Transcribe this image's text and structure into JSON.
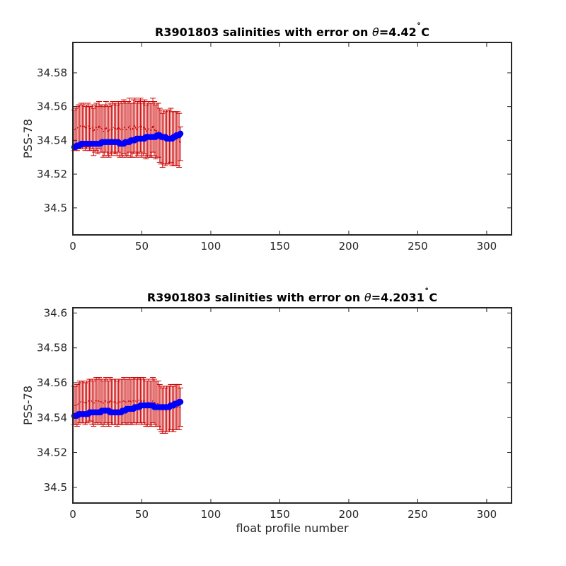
{
  "chart_data": [
    {
      "type": "scatter",
      "title": "R3901803 salinities with error on θ=4.42˚C",
      "title_prefix": "R3901803 salinities with error on ",
      "title_theta": "θ",
      "title_suffix": "=4.42",
      "title_deg": "˚",
      "title_unit": "C",
      "ylabel": "PSS-78",
      "xlabel": "",
      "xlim": [
        0,
        318
      ],
      "ylim": [
        34.484,
        34.598
      ],
      "xticks": [
        0,
        50,
        100,
        150,
        200,
        250,
        300
      ],
      "yticks": [
        34.5,
        34.52,
        34.54,
        34.56,
        34.58
      ],
      "ytick_labels": [
        "34.5",
        "34.52",
        "34.54",
        "34.56",
        "34.58"
      ],
      "x_start": 1,
      "x_step": 1,
      "series": [
        {
          "role": "mean salinity",
          "color": "#0000ff",
          "values": [
            34.536,
            34.536,
            34.537,
            34.537,
            34.537,
            34.538,
            34.538,
            34.538,
            34.538,
            34.538,
            34.538,
            34.538,
            34.538,
            34.538,
            34.538,
            34.538,
            34.538,
            34.538,
            34.538,
            34.538,
            34.539,
            34.539,
            34.539,
            34.539,
            34.539,
            34.539,
            34.539,
            34.539,
            34.539,
            34.539,
            34.539,
            34.539,
            34.539,
            34.538,
            34.538,
            34.538,
            34.538,
            34.539,
            34.539,
            34.539,
            34.539,
            34.54,
            34.54,
            34.54,
            34.54,
            34.541,
            34.541,
            34.541,
            34.541,
            34.541,
            34.541,
            34.541,
            34.542,
            34.542,
            34.542,
            34.542,
            34.542,
            34.542,
            34.542,
            34.542,
            34.543,
            34.543,
            34.543,
            34.542,
            34.542,
            34.542,
            34.542,
            34.541,
            34.541,
            34.541,
            34.541,
            34.541,
            34.542,
            34.542,
            34.543,
            34.543,
            34.543,
            34.544
          ]
        },
        {
          "role": "error bars",
          "color": "#cc0000",
          "values": [
            34.546,
            34.547,
            34.547,
            34.548,
            34.548,
            34.549,
            34.548,
            34.549,
            34.547,
            34.548,
            34.549,
            34.547,
            34.547,
            34.548,
            34.545,
            34.547,
            34.548,
            34.546,
            34.549,
            34.547,
            34.547,
            34.545,
            34.546,
            34.548,
            34.546,
            34.545,
            34.547,
            34.546,
            34.548,
            34.547,
            34.547,
            34.546,
            34.548,
            34.546,
            34.547,
            34.546,
            34.548,
            34.547,
            34.546,
            34.547,
            34.549,
            34.546,
            34.546,
            34.548,
            34.549,
            34.546,
            34.547,
            34.548,
            34.549,
            34.546,
            34.547,
            34.548,
            34.545,
            34.546,
            34.547,
            34.546,
            34.546,
            34.549,
            34.547,
            34.545,
            34.546,
            34.546,
            34.543,
            34.542,
            34.54,
            34.542,
            34.541,
            34.542,
            34.542,
            34.542,
            34.543,
            34.541,
            34.541,
            34.541,
            34.541,
            34.541,
            34.54,
            34.538
          ],
          "errors": [
            0.012,
            0.012,
            0.013,
            0.013,
            0.013,
            0.013,
            0.013,
            0.013,
            0.013,
            0.013,
            0.013,
            0.013,
            0.013,
            0.013,
            0.014,
            0.014,
            0.014,
            0.014,
            0.014,
            0.014,
            0.014,
            0.015,
            0.015,
            0.015,
            0.015,
            0.015,
            0.015,
            0.015,
            0.015,
            0.015,
            0.015,
            0.015,
            0.015,
            0.016,
            0.016,
            0.016,
            0.016,
            0.016,
            0.016,
            0.016,
            0.016,
            0.016,
            0.016,
            0.016,
            0.016,
            0.016,
            0.016,
            0.016,
            0.016,
            0.016,
            0.016,
            0.016,
            0.016,
            0.016,
            0.016,
            0.016,
            0.016,
            0.016,
            0.016,
            0.016,
            0.016,
            0.016,
            0.016,
            0.016,
            0.016,
            0.016,
            0.016,
            0.016,
            0.016,
            0.016,
            0.016,
            0.016,
            0.016,
            0.016,
            0.016,
            0.016,
            0.016,
            0.01
          ]
        }
      ]
    },
    {
      "type": "scatter",
      "title": "R3901803 salinities with error on θ=4.2031˚C",
      "title_prefix": "R3901803 salinities with error on ",
      "title_theta": "θ",
      "title_suffix": "=4.2031",
      "title_deg": "˚",
      "title_unit": "C",
      "ylabel": "PSS-78",
      "xlabel": "float profile number",
      "xlim": [
        0,
        318
      ],
      "ylim": [
        34.491,
        34.603
      ],
      "xticks": [
        0,
        50,
        100,
        150,
        200,
        250,
        300
      ],
      "yticks": [
        34.5,
        34.52,
        34.54,
        34.56,
        34.58,
        34.6
      ],
      "ytick_labels": [
        "34.5",
        "34.52",
        "34.54",
        "34.56",
        "34.58",
        "34.6"
      ],
      "x_start": 1,
      "x_step": 1,
      "series": [
        {
          "role": "mean salinity",
          "color": "#0000ff",
          "values": [
            34.541,
            34.541,
            34.541,
            34.542,
            34.542,
            34.542,
            34.542,
            34.542,
            34.542,
            34.542,
            34.542,
            34.543,
            34.543,
            34.543,
            34.543,
            34.543,
            34.543,
            34.543,
            34.543,
            34.543,
            34.544,
            34.544,
            34.544,
            34.544,
            34.544,
            34.544,
            34.543,
            34.543,
            34.543,
            34.543,
            34.543,
            34.543,
            34.543,
            34.543,
            34.543,
            34.544,
            34.544,
            34.544,
            34.545,
            34.545,
            34.545,
            34.545,
            34.545,
            34.545,
            34.546,
            34.546,
            34.546,
            34.546,
            34.547,
            34.547,
            34.547,
            34.547,
            34.547,
            34.547,
            34.547,
            34.547,
            34.547,
            34.547,
            34.546,
            34.546,
            34.546,
            34.546,
            34.546,
            34.546,
            34.546,
            34.546,
            34.546,
            34.546,
            34.546,
            34.546,
            34.547,
            34.547,
            34.547,
            34.548,
            34.548,
            34.548,
            34.549,
            34.549
          ]
        },
        {
          "role": "error bars",
          "color": "#cc0000",
          "values": [
            34.547,
            34.547,
            34.547,
            34.548,
            34.549,
            34.549,
            34.549,
            34.549,
            34.548,
            34.549,
            34.549,
            34.55,
            34.55,
            34.549,
            34.548,
            34.549,
            34.55,
            34.549,
            34.55,
            34.549,
            34.549,
            34.548,
            34.549,
            34.55,
            34.549,
            34.548,
            34.55,
            34.549,
            34.549,
            34.549,
            34.549,
            34.548,
            34.549,
            34.549,
            34.549,
            34.549,
            34.55,
            34.549,
            34.549,
            34.549,
            34.55,
            34.549,
            34.549,
            34.55,
            34.55,
            34.549,
            34.55,
            34.55,
            34.55,
            34.549,
            34.55,
            34.549,
            34.548,
            34.548,
            34.549,
            34.548,
            34.548,
            34.55,
            34.549,
            34.548,
            34.548,
            34.548,
            34.546,
            34.545,
            34.544,
            34.545,
            34.544,
            34.545,
            34.545,
            34.545,
            34.546,
            34.545,
            34.545,
            34.546,
            34.546,
            34.546,
            34.546,
            34.546
          ],
          "errors": [
            0.011,
            0.011,
            0.012,
            0.012,
            0.012,
            0.012,
            0.012,
            0.012,
            0.012,
            0.012,
            0.012,
            0.012,
            0.012,
            0.013,
            0.013,
            0.013,
            0.013,
            0.013,
            0.013,
            0.013,
            0.013,
            0.013,
            0.013,
            0.013,
            0.013,
            0.013,
            0.013,
            0.013,
            0.013,
            0.013,
            0.013,
            0.013,
            0.013,
            0.013,
            0.013,
            0.013,
            0.013,
            0.013,
            0.013,
            0.013,
            0.013,
            0.013,
            0.013,
            0.013,
            0.013,
            0.013,
            0.013,
            0.013,
            0.013,
            0.013,
            0.013,
            0.013,
            0.013,
            0.013,
            0.013,
            0.013,
            0.013,
            0.013,
            0.013,
            0.013,
            0.013,
            0.013,
            0.013,
            0.013,
            0.013,
            0.013,
            0.013,
            0.013,
            0.013,
            0.013,
            0.013,
            0.013,
            0.013,
            0.013,
            0.013,
            0.013,
            0.013,
            0.011
          ]
        }
      ]
    }
  ]
}
